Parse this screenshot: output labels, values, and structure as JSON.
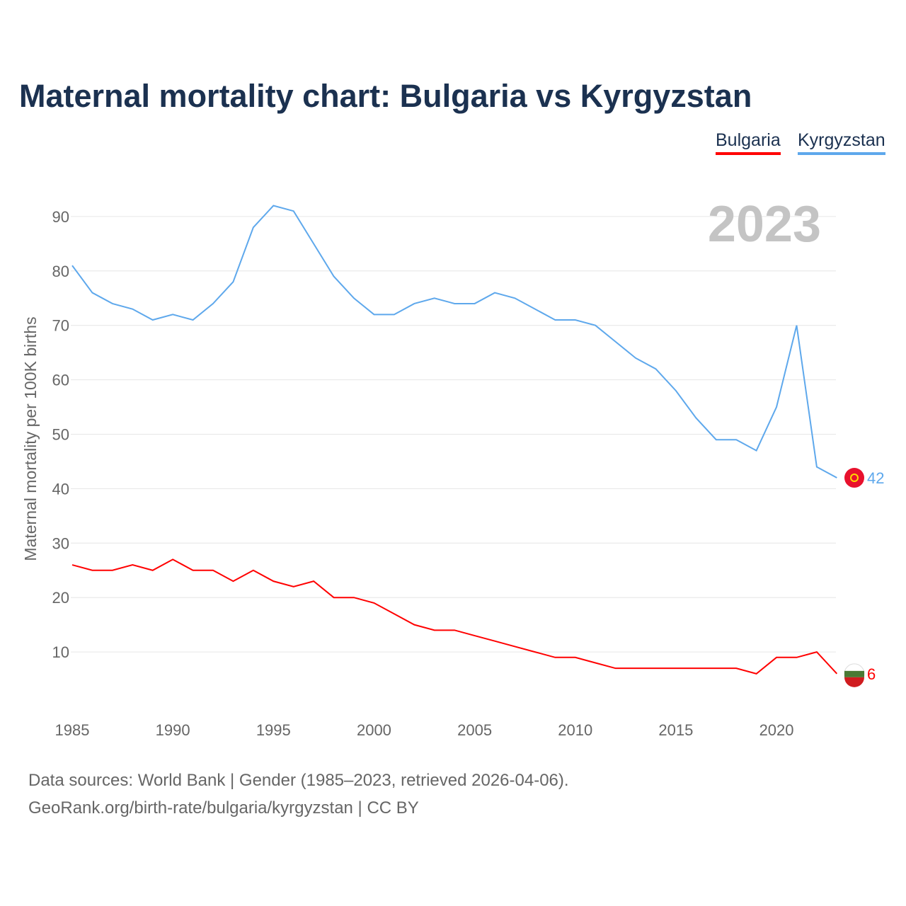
{
  "chart_data": {
    "type": "line",
    "title": "Maternal mortality chart: Bulgaria vs Kyrgyzstan",
    "xlabel": "",
    "ylabel": "Maternal mortality per 100K births",
    "year_label": "2023",
    "x": [
      1985,
      1986,
      1987,
      1988,
      1989,
      1990,
      1991,
      1992,
      1993,
      1994,
      1995,
      1996,
      1997,
      1998,
      1999,
      2000,
      2001,
      2002,
      2003,
      2004,
      2005,
      2006,
      2007,
      2008,
      2009,
      2010,
      2011,
      2012,
      2013,
      2014,
      2015,
      2016,
      2017,
      2018,
      2019,
      2020,
      2021,
      2022,
      2023
    ],
    "xticks": [
      "1985",
      "1990",
      "1995",
      "2000",
      "2005",
      "2010",
      "2015",
      "2020"
    ],
    "yticks": [
      "10",
      "20",
      "30",
      "40",
      "50",
      "60",
      "70",
      "80",
      "90"
    ],
    "ylim": [
      0,
      100
    ],
    "grid": true,
    "legend_position": "top-right",
    "series": [
      {
        "name": "Bulgaria",
        "color": "#ff0000",
        "end_label": "6",
        "values": [
          26,
          25,
          25,
          26,
          25,
          27,
          25,
          25,
          23,
          25,
          23,
          22,
          23,
          20,
          20,
          19,
          17,
          15,
          14,
          14,
          13,
          12,
          11,
          10,
          9,
          9,
          8,
          7,
          7,
          7,
          7,
          7,
          7,
          7,
          6,
          9,
          9,
          10,
          6
        ]
      },
      {
        "name": "Kyrgyzstan",
        "color": "#5ea8ec",
        "end_label": "42",
        "values": [
          81,
          76,
          74,
          73,
          71,
          72,
          71,
          74,
          78,
          88,
          92,
          91,
          85,
          79,
          75,
          72,
          72,
          74,
          75,
          74,
          74,
          76,
          75,
          73,
          71,
          71,
          70,
          67,
          64,
          62,
          58,
          53,
          49,
          49,
          47,
          55,
          70,
          44,
          42
        ]
      }
    ]
  },
  "footer": {
    "line1": "Data sources: World Bank | Gender (1985–2023, retrieved 2026-04-06).",
    "line2": "GeoRank.org/birth-rate/bulgaria/kyrgyzstan | CC BY"
  }
}
